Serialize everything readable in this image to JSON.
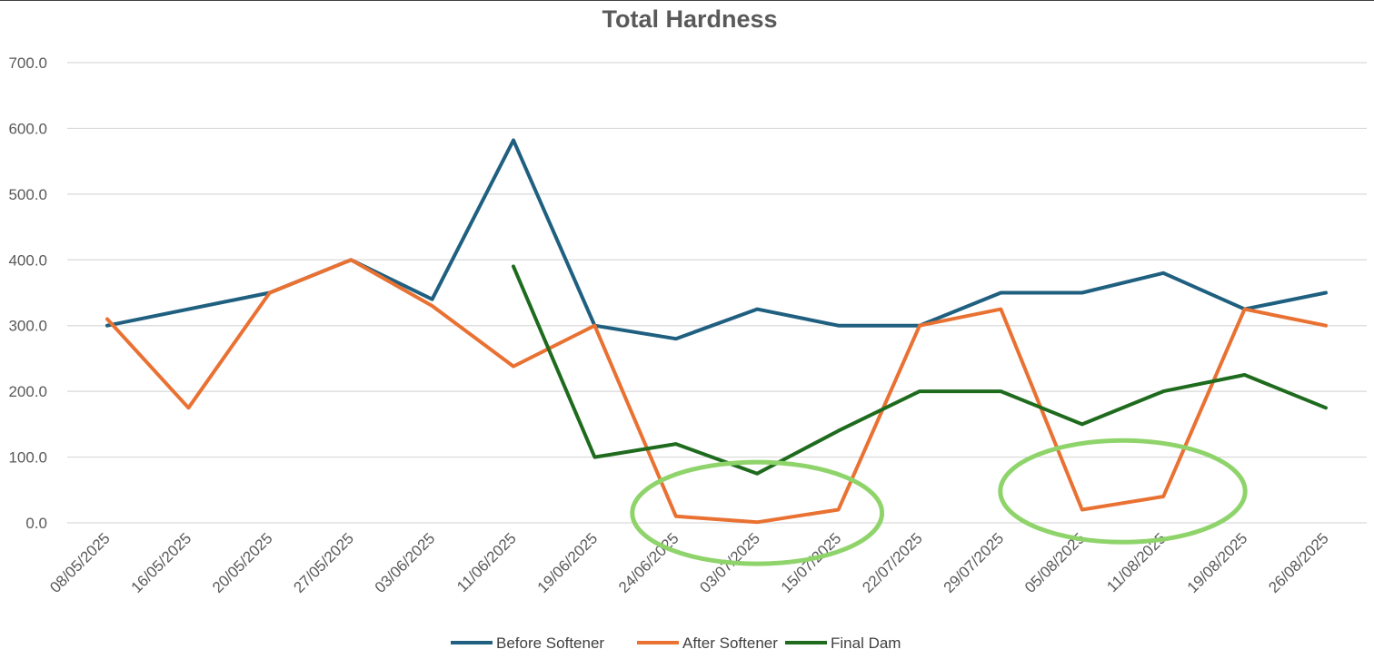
{
  "chart_data": {
    "type": "line",
    "title": "Total Hardness",
    "xlabel": "",
    "ylabel": "",
    "ylim": [
      0,
      700
    ],
    "yticks": [
      0,
      100,
      200,
      300,
      400,
      500,
      600,
      700
    ],
    "ytick_labels": [
      "0.0",
      "100.0",
      "200.0",
      "300.0",
      "400.0",
      "500.0",
      "600.0",
      "700.0"
    ],
    "grid": true,
    "legend_position": "bottom",
    "categories": [
      "08/05/2025",
      "16/05/2025",
      "20/05/2025",
      "27/05/2025",
      "03/06/2025",
      "11/06/2025",
      "19/06/2025",
      "24/06/2025",
      "03/07/2025",
      "15/07/2025",
      "22/07/2025",
      "29/07/2025",
      "05/08/2025",
      "11/08/2025",
      "19/08/2025",
      "26/08/2025"
    ],
    "series": [
      {
        "name": "Before Softener",
        "color": "#1f5f7f",
        "values": [
          300,
          null,
          350,
          400,
          340,
          582,
          300,
          280,
          325,
          300,
          300,
          350,
          350,
          380,
          325,
          350
        ]
      },
      {
        "name": "After Softener",
        "color": "#e97132",
        "values": [
          310,
          175,
          350,
          400,
          330,
          238,
          300,
          10,
          1,
          20,
          300,
          325,
          20,
          40,
          325,
          300
        ]
      },
      {
        "name": "Final Dam",
        "color": "#1e6b1e",
        "values": [
          null,
          null,
          null,
          null,
          null,
          390,
          100,
          120,
          75,
          140,
          200,
          200,
          150,
          200,
          225,
          175
        ]
      }
    ],
    "annotations": [
      {
        "type": "ellipse",
        "color": "#8fd46b",
        "around_categories": [
          "24/06/2025",
          "15/07/2025"
        ],
        "center_value": 15
      },
      {
        "type": "ellipse",
        "color": "#8fd46b",
        "around_categories": [
          "05/08/2025",
          "11/08/2025"
        ],
        "center_value": 48
      }
    ]
  }
}
